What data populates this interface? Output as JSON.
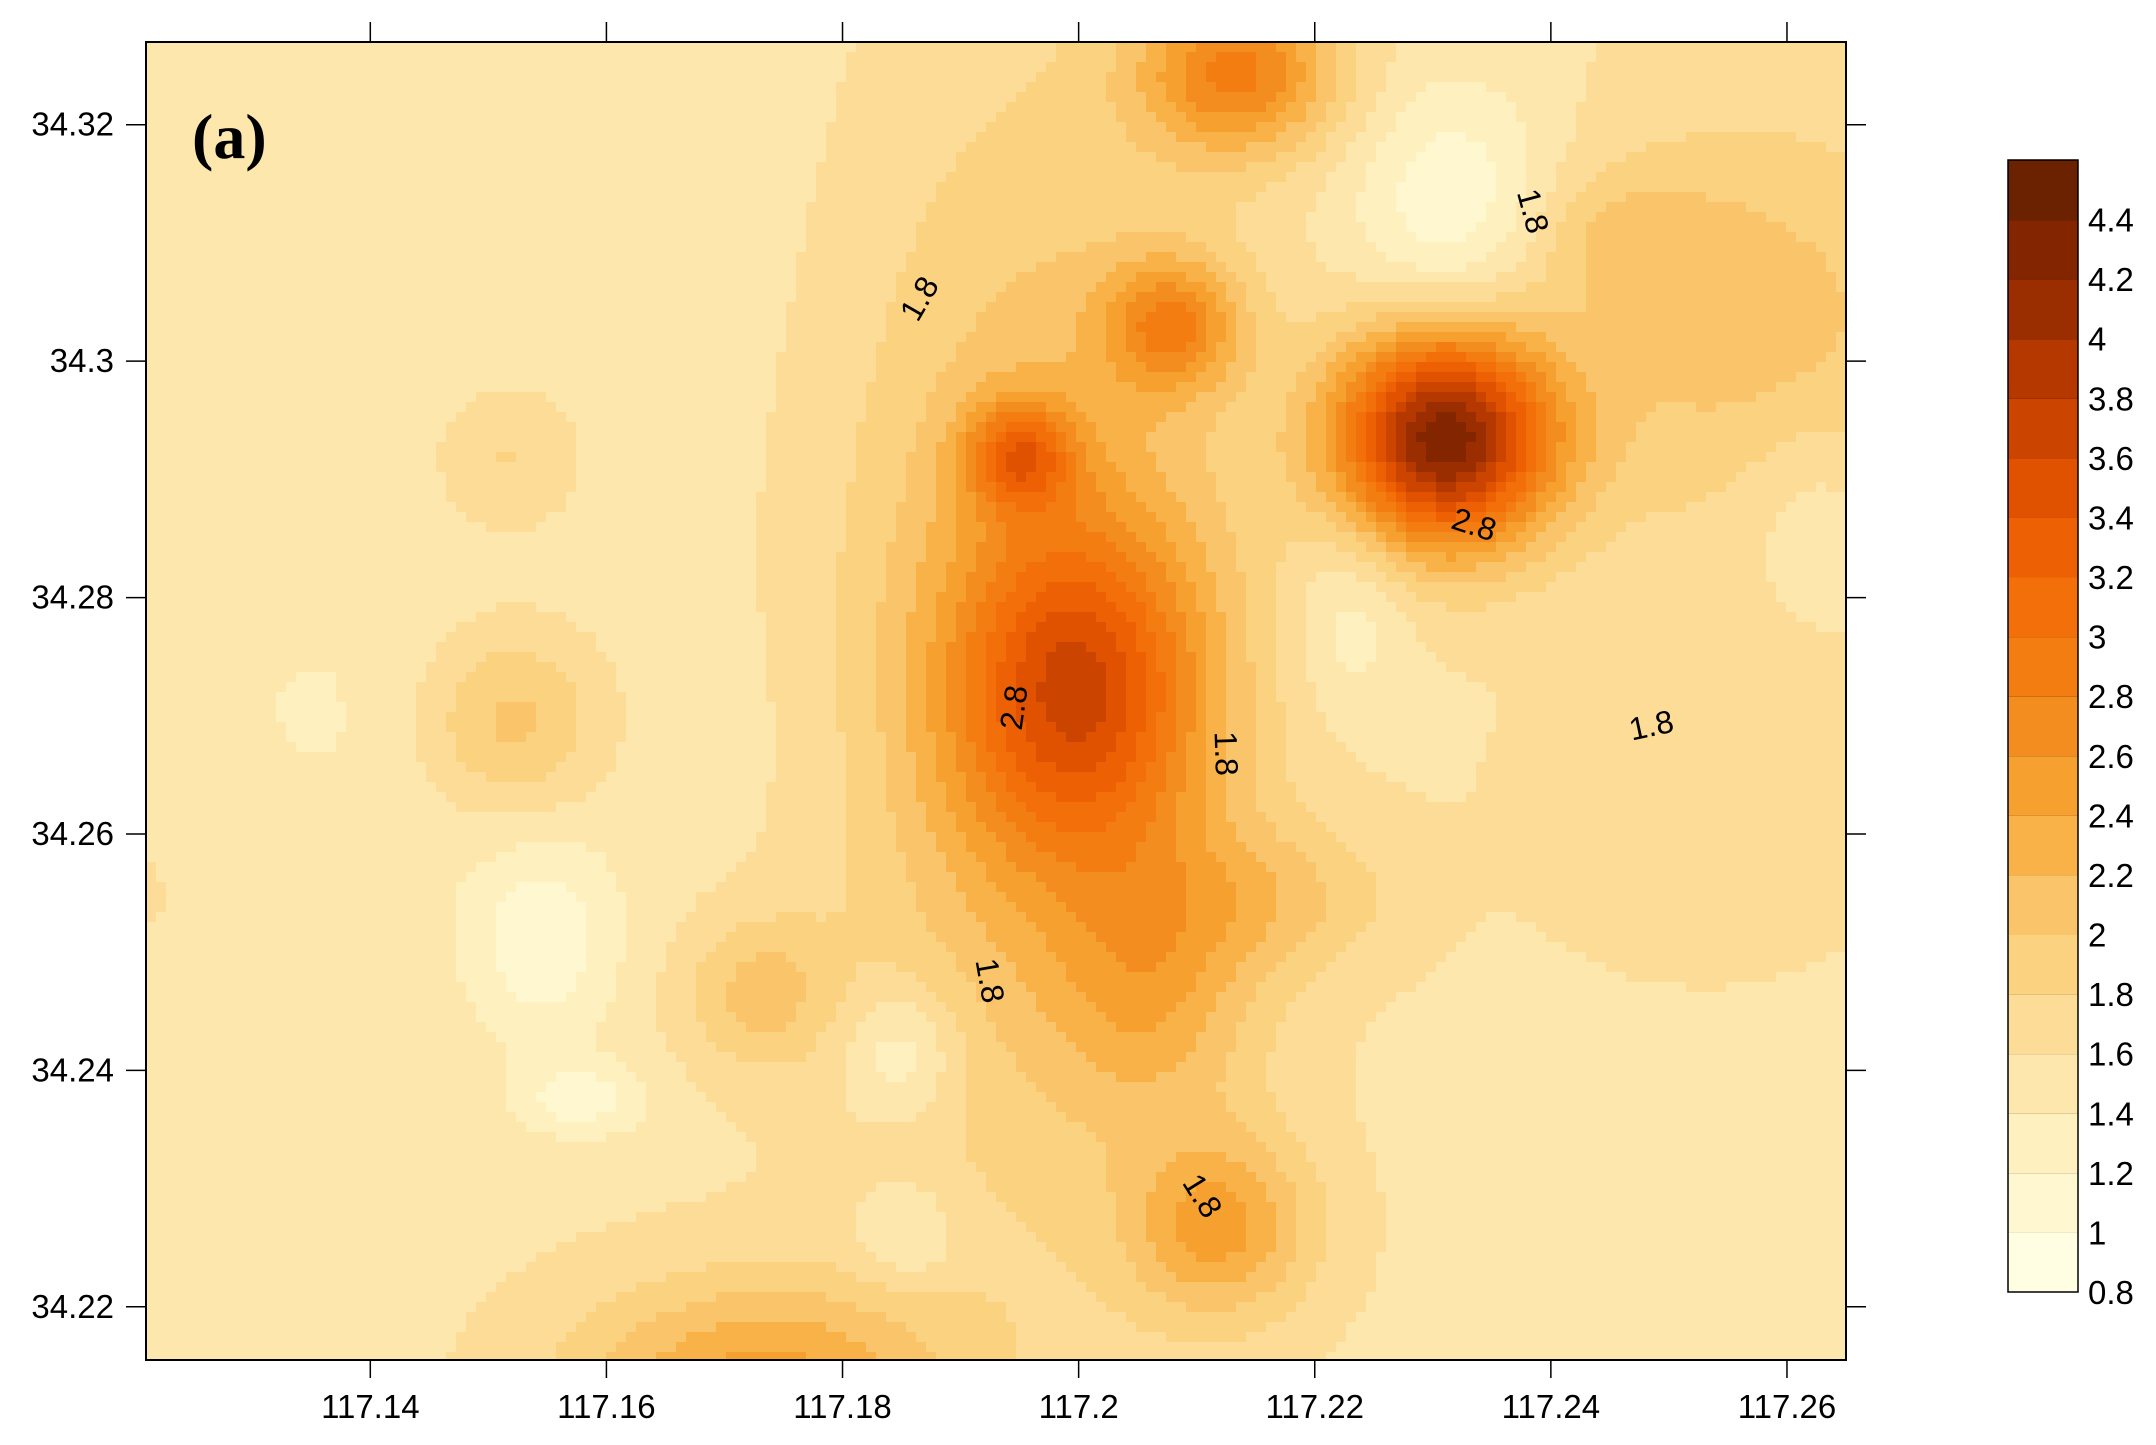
{
  "chart_data": {
    "type": "heatmap",
    "subtype": "filled-contour-map",
    "panel_label": "(a)",
    "xlabel": "",
    "ylabel": "",
    "xlim": [
      117.121,
      117.265
    ],
    "ylim": [
      34.2155,
      34.327
    ],
    "x_ticks": [
      117.14,
      117.16,
      117.18,
      117.2,
      117.22,
      117.24,
      117.26
    ],
    "x_tick_labels": [
      "117.14",
      "117.16",
      "117.18",
      "117.2",
      "117.22",
      "117.24",
      "117.26"
    ],
    "y_ticks": [
      34.22,
      34.24,
      34.26,
      34.28,
      34.3,
      34.32
    ],
    "y_tick_labels": [
      "34.22",
      "34.24",
      "34.26",
      "34.28",
      "34.3",
      "34.32"
    ],
    "contour_levels": [
      0.8,
      1,
      1.2,
      1.4,
      1.6,
      1.8,
      2,
      2.2,
      2.4,
      2.6,
      2.8,
      3,
      3.2,
      3.4,
      3.6,
      3.8,
      4,
      4.2,
      4.4,
      4.6
    ],
    "colorbar_labels": [
      "4.4",
      "4.2",
      "4",
      "3.8",
      "3.6",
      "3.4",
      "3.2",
      "3",
      "2.8",
      "2.6",
      "2.4",
      "2.2",
      "2",
      "1.8",
      "1.6",
      "1.4",
      "1.2",
      "1",
      "0.8"
    ],
    "colors": [
      "#fffde2",
      "#fef7cf",
      "#fef0bf",
      "#fde7ad",
      "#fcdc96",
      "#fbd27f",
      "#fac46a",
      "#f8b247",
      "#f6a030",
      "#f48d20",
      "#f47d12",
      "#f26f0a",
      "#ed6004",
      "#e05200",
      "#cc4500",
      "#b43800",
      "#9b2e00",
      "#832600",
      "#6b2200"
    ],
    "highlighted_contours": [
      1.8,
      2.8
    ],
    "contour_labels": [
      "1.8",
      "1.8",
      "1.8",
      "1.8",
      "1.8",
      "2.8",
      "2.8",
      "1.8"
    ],
    "field_features": [
      {
        "x": 117.1325,
        "y": 34.313,
        "value": 1.4,
        "sx": 0.03,
        "sy": 0.03
      },
      {
        "x": 117.138,
        "y": 34.268,
        "value": 1.4,
        "sx": 0.025,
        "sy": 0.008
      },
      {
        "x": 117.1185,
        "y": 34.2625,
        "value": 1.7,
        "sx": 0.01,
        "sy": 0.01
      },
      {
        "x": 117.1515,
        "y": 34.292,
        "value": 1.9,
        "sx": 0.0045,
        "sy": 0.0045
      },
      {
        "x": 117.152,
        "y": 34.2695,
        "value": 2.2,
        "sx": 0.0058,
        "sy": 0.0058
      },
      {
        "x": 117.1545,
        "y": 34.2508,
        "value": 1.05,
        "sx": 0.0045,
        "sy": 0.006
      },
      {
        "x": 117.173,
        "y": 34.2465,
        "value": 2.05,
        "sx": 0.0045,
        "sy": 0.0045
      },
      {
        "x": 117.158,
        "y": 34.2375,
        "value": 1.1,
        "sx": 0.004,
        "sy": 0.0022
      },
      {
        "x": 117.173,
        "y": 34.213,
        "value": 2.5,
        "sx": 0.011,
        "sy": 0.0065
      },
      {
        "x": 117.185,
        "y": 34.2415,
        "value": 1.1,
        "sx": 0.0035,
        "sy": 0.004
      },
      {
        "x": 117.1855,
        "y": 34.226,
        "value": 1.2,
        "sx": 0.003,
        "sy": 0.003
      },
      {
        "x": 117.212,
        "y": 34.2267,
        "value": 2.4,
        "sx": 0.0055,
        "sy": 0.0055
      },
      {
        "x": 117.197,
        "y": 34.276,
        "value": 2.3,
        "sx": 0.012,
        "sy": 0.032
      },
      {
        "x": 117.2,
        "y": 34.272,
        "value": 3.0,
        "sx": 0.0075,
        "sy": 0.01
      },
      {
        "x": 117.2065,
        "y": 34.2475,
        "value": 2.1,
        "sx": 0.006,
        "sy": 0.008
      },
      {
        "x": 117.217,
        "y": 34.2545,
        "value": 1.95,
        "sx": 0.007,
        "sy": 0.0045
      },
      {
        "x": 117.208,
        "y": 34.303,
        "value": 2.6,
        "sx": 0.004,
        "sy": 0.004
      },
      {
        "x": 117.195,
        "y": 34.292,
        "value": 2.7,
        "sx": 0.0032,
        "sy": 0.0032
      },
      {
        "x": 117.2135,
        "y": 34.3245,
        "value": 2.8,
        "sx": 0.006,
        "sy": 0.005
      },
      {
        "x": 117.231,
        "y": 34.2935,
        "value": 4.3,
        "sx": 0.0065,
        "sy": 0.0065
      },
      {
        "x": 117.232,
        "y": 34.3125,
        "value": 0.95,
        "sx": 0.006,
        "sy": 0.0075
      },
      {
        "x": 117.223,
        "y": 34.279,
        "value": 1.2,
        "sx": 0.0035,
        "sy": 0.006
      },
      {
        "x": 117.245,
        "y": 34.3105,
        "value": 1.85,
        "sx": 0.006,
        "sy": 0.004
      },
      {
        "x": 117.262,
        "y": 34.288,
        "value": 1.3,
        "sx": 0.0045,
        "sy": 0.006
      },
      {
        "x": 117.257,
        "y": 34.303,
        "value": 2.1,
        "sx": 0.013,
        "sy": 0.013
      },
      {
        "x": 117.253,
        "y": 34.262,
        "value": 1.75,
        "sx": 0.011,
        "sy": 0.009
      }
    ]
  }
}
